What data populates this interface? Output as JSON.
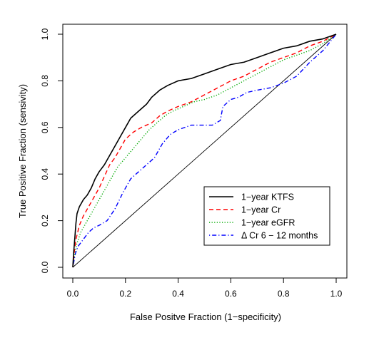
{
  "chart_data": {
    "type": "line",
    "title": "",
    "xlabel": "False Positve Fraction (1−specificity)",
    "ylabel": "True Positive Fraction (sensivity)",
    "xlim": [
      0,
      1
    ],
    "ylim": [
      0,
      1
    ],
    "x_ticks": [
      "0.0",
      "0.2",
      "0.4",
      "0.6",
      "0.8",
      "1.0"
    ],
    "y_ticks": [
      "0.0",
      "0.2",
      "0.4",
      "0.6",
      "0.8",
      "1.0"
    ],
    "grid": false,
    "legend_position": "bottom-right",
    "reference_line": {
      "x": [
        0,
        1
      ],
      "y": [
        0,
        1
      ],
      "color": "#000000"
    },
    "series": [
      {
        "name": "1−year KTFS",
        "color": "#000000",
        "dash": "solid",
        "points": [
          [
            0,
            0
          ],
          [
            0.003,
            0.06
          ],
          [
            0.008,
            0.13
          ],
          [
            0.012,
            0.19
          ],
          [
            0.016,
            0.23
          ],
          [
            0.025,
            0.26
          ],
          [
            0.04,
            0.29
          ],
          [
            0.055,
            0.31
          ],
          [
            0.07,
            0.34
          ],
          [
            0.085,
            0.38
          ],
          [
            0.1,
            0.41
          ],
          [
            0.12,
            0.44
          ],
          [
            0.14,
            0.48
          ],
          [
            0.16,
            0.52
          ],
          [
            0.18,
            0.56
          ],
          [
            0.2,
            0.6
          ],
          [
            0.22,
            0.64
          ],
          [
            0.25,
            0.67
          ],
          [
            0.28,
            0.7
          ],
          [
            0.3,
            0.73
          ],
          [
            0.33,
            0.76
          ],
          [
            0.36,
            0.78
          ],
          [
            0.4,
            0.8
          ],
          [
            0.45,
            0.81
          ],
          [
            0.5,
            0.83
          ],
          [
            0.55,
            0.85
          ],
          [
            0.6,
            0.87
          ],
          [
            0.65,
            0.88
          ],
          [
            0.7,
            0.9
          ],
          [
            0.75,
            0.92
          ],
          [
            0.8,
            0.94
          ],
          [
            0.85,
            0.95
          ],
          [
            0.9,
            0.97
          ],
          [
            0.95,
            0.98
          ],
          [
            1,
            1
          ]
        ]
      },
      {
        "name": "1−year Cr",
        "color": "#ff0000",
        "dash": "dashed",
        "points": [
          [
            0,
            0
          ],
          [
            0.005,
            0.06
          ],
          [
            0.012,
            0.12
          ],
          [
            0.025,
            0.18
          ],
          [
            0.04,
            0.22
          ],
          [
            0.06,
            0.26
          ],
          [
            0.08,
            0.3
          ],
          [
            0.1,
            0.34
          ],
          [
            0.12,
            0.39
          ],
          [
            0.14,
            0.44
          ],
          [
            0.16,
            0.47
          ],
          [
            0.18,
            0.51
          ],
          [
            0.2,
            0.55
          ],
          [
            0.23,
            0.58
          ],
          [
            0.26,
            0.6
          ],
          [
            0.3,
            0.62
          ],
          [
            0.33,
            0.65
          ],
          [
            0.36,
            0.67
          ],
          [
            0.4,
            0.69
          ],
          [
            0.45,
            0.71
          ],
          [
            0.5,
            0.74
          ],
          [
            0.55,
            0.77
          ],
          [
            0.6,
            0.8
          ],
          [
            0.65,
            0.82
          ],
          [
            0.7,
            0.85
          ],
          [
            0.75,
            0.88
          ],
          [
            0.8,
            0.9
          ],
          [
            0.85,
            0.92
          ],
          [
            0.9,
            0.95
          ],
          [
            0.95,
            0.97
          ],
          [
            1,
            1
          ]
        ]
      },
      {
        "name": "1−year eGFR",
        "color": "#00aa00",
        "dash": "dotted",
        "points": [
          [
            0,
            0
          ],
          [
            0.006,
            0.05
          ],
          [
            0.015,
            0.1
          ],
          [
            0.03,
            0.15
          ],
          [
            0.05,
            0.19
          ],
          [
            0.07,
            0.23
          ],
          [
            0.09,
            0.27
          ],
          [
            0.11,
            0.31
          ],
          [
            0.13,
            0.35
          ],
          [
            0.15,
            0.39
          ],
          [
            0.17,
            0.43
          ],
          [
            0.2,
            0.47
          ],
          [
            0.23,
            0.51
          ],
          [
            0.26,
            0.55
          ],
          [
            0.29,
            0.59
          ],
          [
            0.32,
            0.62
          ],
          [
            0.35,
            0.65
          ],
          [
            0.38,
            0.67
          ],
          [
            0.42,
            0.69
          ],
          [
            0.46,
            0.71
          ],
          [
            0.5,
            0.72
          ],
          [
            0.55,
            0.74
          ],
          [
            0.6,
            0.77
          ],
          [
            0.65,
            0.8
          ],
          [
            0.7,
            0.83
          ],
          [
            0.75,
            0.86
          ],
          [
            0.8,
            0.89
          ],
          [
            0.85,
            0.91
          ],
          [
            0.9,
            0.93
          ],
          [
            0.95,
            0.96
          ],
          [
            1,
            1
          ]
        ]
      },
      {
        "name": "Δ Cr 6 − 12 months",
        "color": "#0000ff",
        "dash": "dotdash",
        "points": [
          [
            0,
            0
          ],
          [
            0.01,
            0.06
          ],
          [
            0.02,
            0.09
          ],
          [
            0.04,
            0.12
          ],
          [
            0.06,
            0.15
          ],
          [
            0.08,
            0.17
          ],
          [
            0.1,
            0.18
          ],
          [
            0.13,
            0.2
          ],
          [
            0.16,
            0.25
          ],
          [
            0.19,
            0.32
          ],
          [
            0.22,
            0.38
          ],
          [
            0.25,
            0.41
          ],
          [
            0.28,
            0.44
          ],
          [
            0.31,
            0.47
          ],
          [
            0.34,
            0.53
          ],
          [
            0.37,
            0.57
          ],
          [
            0.4,
            0.59
          ],
          [
            0.45,
            0.61
          ],
          [
            0.5,
            0.61
          ],
          [
            0.53,
            0.61
          ],
          [
            0.56,
            0.63
          ],
          [
            0.57,
            0.69
          ],
          [
            0.6,
            0.72
          ],
          [
            0.63,
            0.73
          ],
          [
            0.66,
            0.75
          ],
          [
            0.7,
            0.76
          ],
          [
            0.75,
            0.77
          ],
          [
            0.8,
            0.79
          ],
          [
            0.85,
            0.82
          ],
          [
            0.9,
            0.88
          ],
          [
            0.95,
            0.93
          ],
          [
            1,
            1
          ]
        ]
      }
    ]
  }
}
